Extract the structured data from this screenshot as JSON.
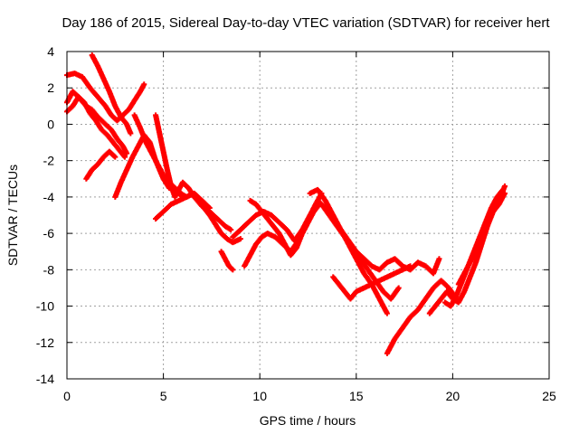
{
  "chart_data": {
    "type": "scatter",
    "title": "Day 186 of 2015, Sidereal Day-to-day VTEC variation (SDTVAR) for receiver hert",
    "xlabel": "GPS time / hours",
    "ylabel": "SDTVAR / TECUs",
    "xlim": [
      0,
      25
    ],
    "ylim": [
      -14,
      4
    ],
    "xticks": [
      0,
      5,
      10,
      15,
      20,
      25
    ],
    "yticks": [
      -14,
      -12,
      -10,
      -8,
      -6,
      -4,
      -2,
      0,
      2,
      4
    ],
    "grid": true,
    "marker": "plus",
    "color": "#ff0000",
    "series": [
      {
        "x": [
          0.0,
          0.4,
          0.8,
          1.2,
          1.6,
          2.0,
          2.3,
          2.6,
          2.9,
          3.2,
          3.5,
          3.8,
          4.0
        ],
        "y": [
          2.7,
          2.8,
          2.6,
          2.0,
          1.5,
          1.0,
          0.5,
          0.2,
          0.5,
          0.8,
          1.3,
          1.8,
          2.2
        ]
      },
      {
        "x": [
          0.0,
          0.3,
          0.6,
          1.0,
          1.3,
          1.6,
          2.0,
          2.3,
          2.6,
          2.9,
          3.1
        ],
        "y": [
          1.2,
          1.8,
          1.5,
          1.0,
          0.8,
          0.4,
          0.0,
          -0.3,
          -0.8,
          -1.2,
          -1.6
        ]
      },
      {
        "x": [
          0.0,
          0.3,
          0.6,
          0.9,
          1.2,
          1.5,
          1.8,
          2.1,
          2.4,
          2.7,
          3.0
        ],
        "y": [
          0.7,
          1.0,
          1.5,
          1.2,
          0.6,
          0.2,
          -0.3,
          -0.6,
          -1.0,
          -1.4,
          -1.8
        ]
      },
      {
        "x": [
          1.0,
          1.3,
          1.6,
          1.9,
          2.2,
          2.5
        ],
        "y": [
          -3.0,
          -2.5,
          -2.2,
          -1.8,
          -1.5,
          -1.8
        ]
      },
      {
        "x": [
          1.3,
          1.6,
          1.9,
          2.2,
          2.5,
          2.8,
          3.1,
          3.3
        ],
        "y": [
          3.8,
          3.2,
          2.5,
          1.8,
          1.0,
          0.4,
          0.0,
          -0.5
        ]
      },
      {
        "x": [
          2.5,
          2.8,
          3.1,
          3.4,
          3.7,
          4.0,
          4.3,
          4.6,
          5.0,
          5.3,
          5.6,
          6.0
        ],
        "y": [
          -4.0,
          -3.2,
          -2.5,
          -1.8,
          -1.2,
          -0.6,
          -1.0,
          -2.0,
          -3.0,
          -3.5,
          -3.6,
          -4.0
        ]
      },
      {
        "x": [
          3.5,
          3.8,
          4.1,
          4.4,
          4.7,
          5.0,
          5.3,
          5.6,
          5.9,
          6.2,
          6.5,
          6.8,
          7.1,
          7.4,
          7.7,
          8.0,
          8.3,
          8.6,
          9.0
        ],
        "y": [
          0.5,
          -0.2,
          -1.0,
          -1.6,
          -2.2,
          -2.8,
          -3.2,
          -3.5,
          -3.8,
          -4.0,
          -3.8,
          -4.2,
          -4.6,
          -5.0,
          -5.5,
          -6.0,
          -6.3,
          -6.5,
          -6.3
        ]
      },
      {
        "x": [
          4.6,
          4.8,
          5.0,
          5.2,
          5.4,
          5.6,
          5.8,
          6.0,
          6.3,
          6.6,
          7.0,
          7.4,
          7.8,
          8.2,
          8.5
        ],
        "y": [
          0.5,
          -0.5,
          -1.5,
          -2.5,
          -3.4,
          -4.0,
          -3.6,
          -3.2,
          -3.5,
          -4.0,
          -4.5,
          -4.8,
          -5.2,
          -5.6,
          -5.8
        ]
      },
      {
        "x": [
          4.6,
          5.0,
          5.4,
          5.8,
          6.2,
          6.6,
          7.0,
          7.4
        ],
        "y": [
          -5.2,
          -4.8,
          -4.4,
          -4.2,
          -4.0,
          -3.8,
          -4.2,
          -4.6
        ]
      },
      {
        "x": [
          8.0,
          8.2,
          8.4,
          8.6
        ],
        "y": [
          -7.0,
          -7.4,
          -7.8,
          -8.0
        ]
      },
      {
        "x": [
          8.6,
          9.0,
          9.4,
          9.8,
          10.2,
          10.6,
          11.0,
          11.4,
          11.8,
          12.2,
          12.6,
          13.0,
          13.4,
          13.8,
          14.2,
          14.6,
          15.0,
          15.4,
          15.8,
          16.2,
          16.6,
          17.0,
          17.4,
          17.8,
          18.2,
          18.6,
          19.0,
          19.3
        ],
        "y": [
          -6.2,
          -5.8,
          -5.4,
          -5.0,
          -4.8,
          -5.0,
          -5.4,
          -5.8,
          -6.4,
          -5.8,
          -5.0,
          -4.2,
          -4.6,
          -5.2,
          -5.8,
          -6.4,
          -7.0,
          -7.4,
          -7.8,
          -8.0,
          -7.6,
          -7.4,
          -7.8,
          -8.0,
          -7.6,
          -7.8,
          -8.2,
          -7.4
        ]
      },
      {
        "x": [
          9.5,
          9.8,
          10.1,
          10.4,
          10.7,
          11.0,
          11.3,
          11.6,
          11.9,
          12.2,
          12.5,
          12.8,
          13.1
        ],
        "y": [
          -4.2,
          -4.4,
          -4.8,
          -5.2,
          -5.6,
          -6.0,
          -6.6,
          -7.2,
          -6.8,
          -6.0,
          -5.4,
          -4.8,
          -4.4
        ]
      },
      {
        "x": [
          9.2,
          9.5,
          9.8,
          10.1,
          10.4,
          10.8,
          11.2,
          11.6,
          12.0,
          12.4,
          12.8,
          13.2
        ],
        "y": [
          -7.8,
          -7.2,
          -6.6,
          -6.2,
          -6.0,
          -6.2,
          -6.6,
          -7.0,
          -6.4,
          -5.6,
          -4.6,
          -3.8
        ]
      },
      {
        "x": [
          12.6,
          13.0,
          13.4,
          13.8,
          14.2,
          14.6,
          15.0,
          15.4,
          15.8,
          16.2,
          16.6
        ],
        "y": [
          -3.8,
          -3.6,
          -4.2,
          -5.0,
          -5.8,
          -6.6,
          -7.4,
          -8.2,
          -8.8,
          -9.6,
          -10.4
        ]
      },
      {
        "x": [
          13.2,
          13.6,
          14.0,
          14.4,
          14.8,
          15.2,
          15.6,
          16.0,
          16.4,
          16.8,
          17.2
        ],
        "y": [
          -4.4,
          -5.0,
          -5.6,
          -6.2,
          -6.8,
          -7.4,
          -8.0,
          -8.6,
          -9.2,
          -9.6,
          -9.0
        ]
      },
      {
        "x": [
          13.8,
          14.1,
          14.4,
          14.7,
          15.0,
          15.4,
          15.8,
          16.2,
          16.6,
          17.0,
          17.4,
          17.8
        ],
        "y": [
          -8.4,
          -8.8,
          -9.2,
          -9.6,
          -9.2,
          -9.0,
          -8.8,
          -8.6,
          -8.4,
          -8.2,
          -8.0,
          -7.8
        ]
      },
      {
        "x": [
          16.6,
          17.0,
          17.4,
          17.8,
          18.2,
          18.6,
          19.0,
          19.4,
          19.8,
          20.2
        ],
        "y": [
          -12.6,
          -11.8,
          -11.2,
          -10.6,
          -10.2,
          -9.6,
          -9.0,
          -8.6,
          -9.0,
          -9.6
        ]
      },
      {
        "x": [
          18.8,
          19.1,
          19.4,
          19.7,
          20.0,
          20.3,
          20.6,
          20.9,
          21.2,
          21.5,
          21.8,
          22.1,
          22.4,
          22.7
        ],
        "y": [
          -10.4,
          -10.0,
          -9.6,
          -9.2,
          -9.6,
          -9.8,
          -9.2,
          -8.4,
          -7.6,
          -6.6,
          -5.6,
          -4.8,
          -4.2,
          -3.4
        ]
      },
      {
        "x": [
          19.6,
          19.9,
          20.2,
          20.5,
          20.8,
          21.1,
          21.4,
          21.7,
          22.0,
          22.3,
          22.6
        ],
        "y": [
          -9.8,
          -10.0,
          -9.4,
          -8.6,
          -7.8,
          -7.0,
          -6.2,
          -5.4,
          -4.6,
          -4.0,
          -3.6
        ]
      },
      {
        "x": [
          20.3,
          20.6,
          20.9,
          21.2,
          21.5,
          21.8,
          22.1,
          22.4,
          22.7
        ],
        "y": [
          -8.8,
          -8.2,
          -7.6,
          -7.0,
          -6.2,
          -5.4,
          -4.8,
          -4.4,
          -3.8
        ]
      }
    ]
  }
}
